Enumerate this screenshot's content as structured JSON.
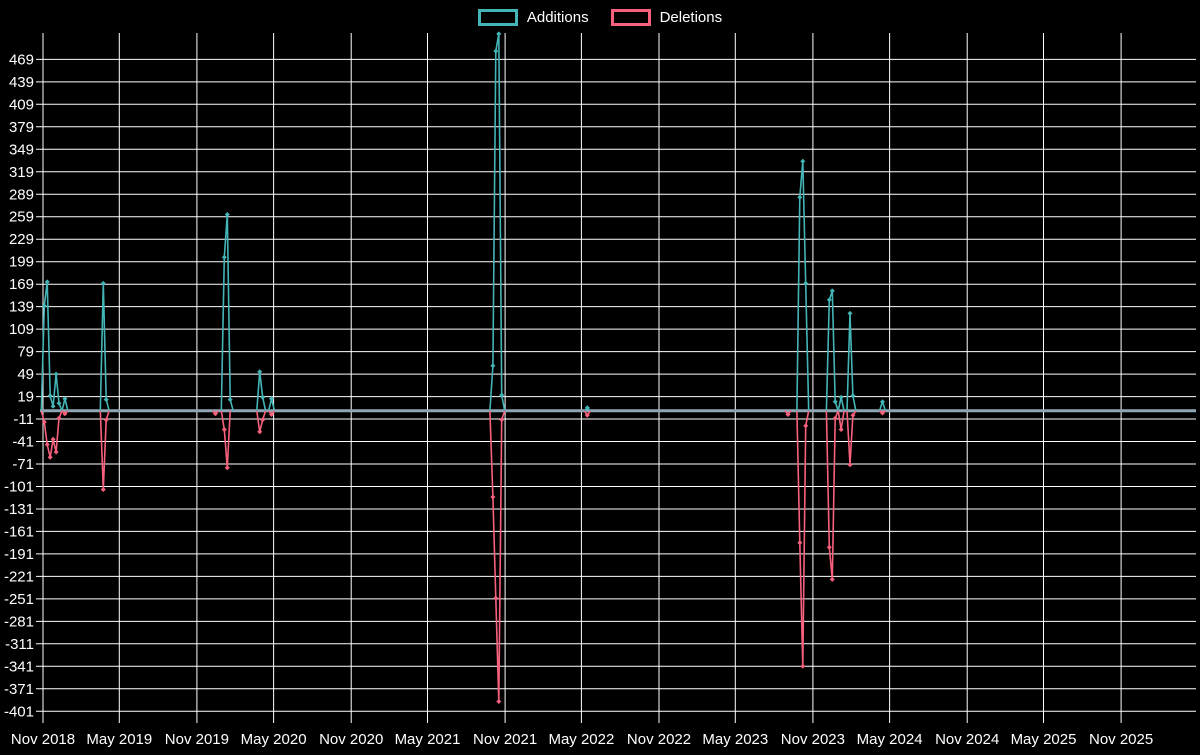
{
  "legend": {
    "note": "legend labels bound from chart_data.series names"
  },
  "colors": {
    "background": "#000000",
    "grid": "#ffffff",
    "zero_line": "#8fa6b5",
    "additions": "#44b5b6",
    "deletions": "#f8617d",
    "axis_text": "#ffffff"
  },
  "chart_data": {
    "type": "line",
    "title": "",
    "grid": true,
    "legend_position": "top-center",
    "xlabel": "",
    "ylabel": "",
    "ylim": [
      -415,
      505
    ],
    "y_ticks": [
      469,
      439,
      409,
      379,
      349,
      319,
      289,
      259,
      229,
      199,
      169,
      139,
      109,
      79,
      49,
      19,
      -11,
      -41,
      -71,
      -101,
      -131,
      -161,
      -191,
      -221,
      -251,
      -281,
      -311,
      -341,
      -371,
      -401
    ],
    "x_ticks": [
      {
        "label": "Nov 2018",
        "date": "2018-11-01"
      },
      {
        "label": "May 2019",
        "date": "2019-05-01"
      },
      {
        "label": "Nov 2019",
        "date": "2019-11-01"
      },
      {
        "label": "May 2020",
        "date": "2020-05-01"
      },
      {
        "label": "Nov 2020",
        "date": "2020-11-01"
      },
      {
        "label": "May 2021",
        "date": "2021-05-01"
      },
      {
        "label": "Nov 2021",
        "date": "2021-11-01"
      },
      {
        "label": "May 2022",
        "date": "2022-05-01"
      },
      {
        "label": "Nov 2022",
        "date": "2022-11-01"
      },
      {
        "label": "May 2023",
        "date": "2023-05-01"
      },
      {
        "label": "Nov 2023",
        "date": "2023-11-01"
      },
      {
        "label": "May 2024",
        "date": "2024-05-01"
      },
      {
        "label": "Nov 2024",
        "date": "2024-11-01"
      },
      {
        "label": "May 2025",
        "date": "2025-05-01"
      },
      {
        "label": "Nov 2025",
        "date": "2025-11-01"
      }
    ],
    "series": [
      {
        "name": "Additions",
        "color": "#44b5b6",
        "default_value": 0,
        "points": [
          {
            "date": "2018-11-04",
            "value": 140
          },
          {
            "date": "2018-11-11",
            "value": 172
          },
          {
            "date": "2018-11-18",
            "value": 20
          },
          {
            "date": "2018-11-25",
            "value": 6
          },
          {
            "date": "2018-12-02",
            "value": 49
          },
          {
            "date": "2018-12-09",
            "value": 10
          },
          {
            "date": "2018-12-23",
            "value": 16
          },
          {
            "date": "2019-03-24",
            "value": 170
          },
          {
            "date": "2019-03-31",
            "value": 15
          },
          {
            "date": "2020-01-05",
            "value": 205
          },
          {
            "date": "2020-01-12",
            "value": 262
          },
          {
            "date": "2020-01-19",
            "value": 15
          },
          {
            "date": "2020-03-29",
            "value": 52
          },
          {
            "date": "2020-04-05",
            "value": 18
          },
          {
            "date": "2020-04-26",
            "value": 16
          },
          {
            "date": "2021-10-03",
            "value": 60
          },
          {
            "date": "2021-10-10",
            "value": 480
          },
          {
            "date": "2021-10-17",
            "value": 503
          },
          {
            "date": "2021-10-24",
            "value": 21
          },
          {
            "date": "2022-05-15",
            "value": 4
          },
          {
            "date": "2023-10-01",
            "value": 285
          },
          {
            "date": "2023-10-08",
            "value": 333
          },
          {
            "date": "2023-10-15",
            "value": 170
          },
          {
            "date": "2023-12-10",
            "value": 148
          },
          {
            "date": "2023-12-17",
            "value": 160
          },
          {
            "date": "2023-12-24",
            "value": 12
          },
          {
            "date": "2024-01-07",
            "value": 18
          },
          {
            "date": "2024-01-28",
            "value": 130
          },
          {
            "date": "2024-02-04",
            "value": 20
          },
          {
            "date": "2024-04-14",
            "value": 12
          }
        ]
      },
      {
        "name": "Deletions",
        "color": "#f8617d",
        "default_value": 0,
        "points": [
          {
            "date": "2018-11-04",
            "value": -15
          },
          {
            "date": "2018-11-11",
            "value": -45
          },
          {
            "date": "2018-11-18",
            "value": -62
          },
          {
            "date": "2018-11-25",
            "value": -38
          },
          {
            "date": "2018-12-02",
            "value": -55
          },
          {
            "date": "2018-12-09",
            "value": -10
          },
          {
            "date": "2018-12-23",
            "value": -4
          },
          {
            "date": "2019-03-24",
            "value": -105
          },
          {
            "date": "2019-03-31",
            "value": -12
          },
          {
            "date": "2019-12-15",
            "value": -4
          },
          {
            "date": "2020-01-05",
            "value": -25
          },
          {
            "date": "2020-01-12",
            "value": -76
          },
          {
            "date": "2020-03-29",
            "value": -28
          },
          {
            "date": "2020-04-05",
            "value": -12
          },
          {
            "date": "2020-04-26",
            "value": -5
          },
          {
            "date": "2021-10-03",
            "value": -115
          },
          {
            "date": "2021-10-10",
            "value": -250
          },
          {
            "date": "2021-10-17",
            "value": -388
          },
          {
            "date": "2021-10-24",
            "value": -12
          },
          {
            "date": "2022-05-15",
            "value": -6
          },
          {
            "date": "2023-09-03",
            "value": -5
          },
          {
            "date": "2023-10-01",
            "value": -176
          },
          {
            "date": "2023-10-08",
            "value": -341
          },
          {
            "date": "2023-10-15",
            "value": -20
          },
          {
            "date": "2023-12-10",
            "value": -182
          },
          {
            "date": "2023-12-17",
            "value": -225
          },
          {
            "date": "2023-12-24",
            "value": -10
          },
          {
            "date": "2024-01-07",
            "value": -25
          },
          {
            "date": "2024-01-28",
            "value": -72
          },
          {
            "date": "2024-02-04",
            "value": -6
          },
          {
            "date": "2024-04-14",
            "value": -3
          }
        ]
      }
    ]
  }
}
